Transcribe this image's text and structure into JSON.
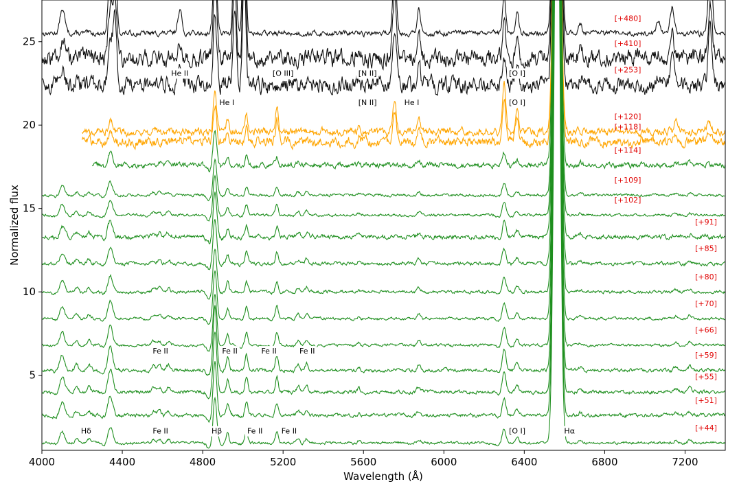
{
  "chart_data": {
    "type": "line",
    "xlabel": "Wavelength (Å)",
    "ylabel": "Normalized flux",
    "xlim": [
      4000,
      7400
    ],
    "ylim": [
      0.5,
      27.5
    ],
    "x_ticks": [
      4000,
      4400,
      4800,
      5200,
      5600,
      6000,
      6400,
      6800,
      7200
    ],
    "y_ticks": [
      5,
      10,
      15,
      20,
      25
    ],
    "colors": {
      "black": "#111111",
      "orange": "#ffa500",
      "green": "#1f8f1f",
      "epoch_label": "#e00000"
    },
    "series": [
      {
        "name": "[+480]",
        "color": "black",
        "offset": 25.5,
        "xmin": 4000,
        "noise": 0.12,
        "scale": 1.6
      },
      {
        "name": "[+410]",
        "color": "black",
        "offset": 24.0,
        "xmin": 4000,
        "noise": 0.4,
        "scale": 1.4
      },
      {
        "name": "[+253]",
        "color": "black",
        "offset": 22.4,
        "xmin": 4000,
        "noise": 0.38,
        "scale": 1.3
      },
      {
        "name": "[+120]",
        "color": "orange",
        "offset": 19.6,
        "xmin": 4200,
        "noise": 0.18,
        "scale": 1.0
      },
      {
        "name": "[+118]",
        "color": "orange",
        "offset": 19.0,
        "xmin": 4200,
        "noise": 0.22,
        "scale": 0.9
      },
      {
        "name": "[+114]",
        "color": "green",
        "offset": 17.6,
        "xmin": 4250,
        "noise": 0.12,
        "scale": 0.9
      },
      {
        "name": "[+109]",
        "color": "green",
        "offset": 15.8,
        "xmin": 4000,
        "noise": 0.06,
        "scale": 0.9
      },
      {
        "name": "[+102]",
        "color": "green",
        "offset": 14.6,
        "xmin": 4000,
        "noise": 0.06,
        "scale": 1.0
      },
      {
        "name": "[+91]",
        "color": "green",
        "offset": 13.3,
        "xmin": 4000,
        "noise": 0.1,
        "scale": 1.1
      },
      {
        "name": "[+85]",
        "color": "green",
        "offset": 11.7,
        "xmin": 4000,
        "noise": 0.08,
        "scale": 1.1
      },
      {
        "name": "[+80]",
        "color": "green",
        "offset": 10.0,
        "xmin": 4000,
        "noise": 0.07,
        "scale": 1.1
      },
      {
        "name": "[+70]",
        "color": "green",
        "offset": 8.4,
        "xmin": 4000,
        "noise": 0.06,
        "scale": 1.2
      },
      {
        "name": "[+66]",
        "color": "green",
        "offset": 6.8,
        "xmin": 4000,
        "noise": 0.06,
        "scale": 1.3
      },
      {
        "name": "[+59]",
        "color": "green",
        "offset": 5.3,
        "xmin": 4000,
        "noise": 0.08,
        "scale": 1.6
      },
      {
        "name": "[+55]",
        "color": "green",
        "offset": 4.0,
        "xmin": 4000,
        "noise": 0.08,
        "scale": 1.5
      },
      {
        "name": "[+51]",
        "color": "green",
        "offset": 2.6,
        "xmin": 4000,
        "noise": 0.08,
        "scale": 1.3
      },
      {
        "name": "[+44]",
        "color": "green",
        "offset": 0.95,
        "xmin": 4000,
        "noise": 0.06,
        "scale": 1.1
      }
    ],
    "annotations": [
      {
        "text": "He II",
        "x": 4686,
        "y": 22.95
      },
      {
        "text": "[O III]",
        "x": 5200,
        "y": 22.95
      },
      {
        "text": "[N II]",
        "x": 5620,
        "y": 22.95
      },
      {
        "text": "[O I]",
        "x": 6365,
        "y": 22.95
      },
      {
        "text": "He I",
        "x": 4920,
        "y": 21.2
      },
      {
        "text": "[N II]",
        "x": 5620,
        "y": 21.2
      },
      {
        "text": "He I",
        "x": 5840,
        "y": 21.2
      },
      {
        "text": "[O I]",
        "x": 6365,
        "y": 21.2
      },
      {
        "text": "Fe II",
        "x": 4590,
        "y": 6.3
      },
      {
        "text": "Fe II",
        "x": 4935,
        "y": 6.3
      },
      {
        "text": "Fe II",
        "x": 5130,
        "y": 6.3
      },
      {
        "text": "Fe II",
        "x": 5320,
        "y": 6.3
      },
      {
        "text": "Hδ",
        "x": 4220,
        "y": 1.5
      },
      {
        "text": "Fe II",
        "x": 4590,
        "y": 1.5
      },
      {
        "text": "Hβ",
        "x": 4870,
        "y": 1.5
      },
      {
        "text": "Fe II",
        "x": 5060,
        "y": 1.5
      },
      {
        "text": "Fe II",
        "x": 5230,
        "y": 1.5
      },
      {
        "text": "[O I]",
        "x": 6365,
        "y": 1.5
      },
      {
        "text": "Hα",
        "x": 6625,
        "y": 1.5
      }
    ]
  }
}
